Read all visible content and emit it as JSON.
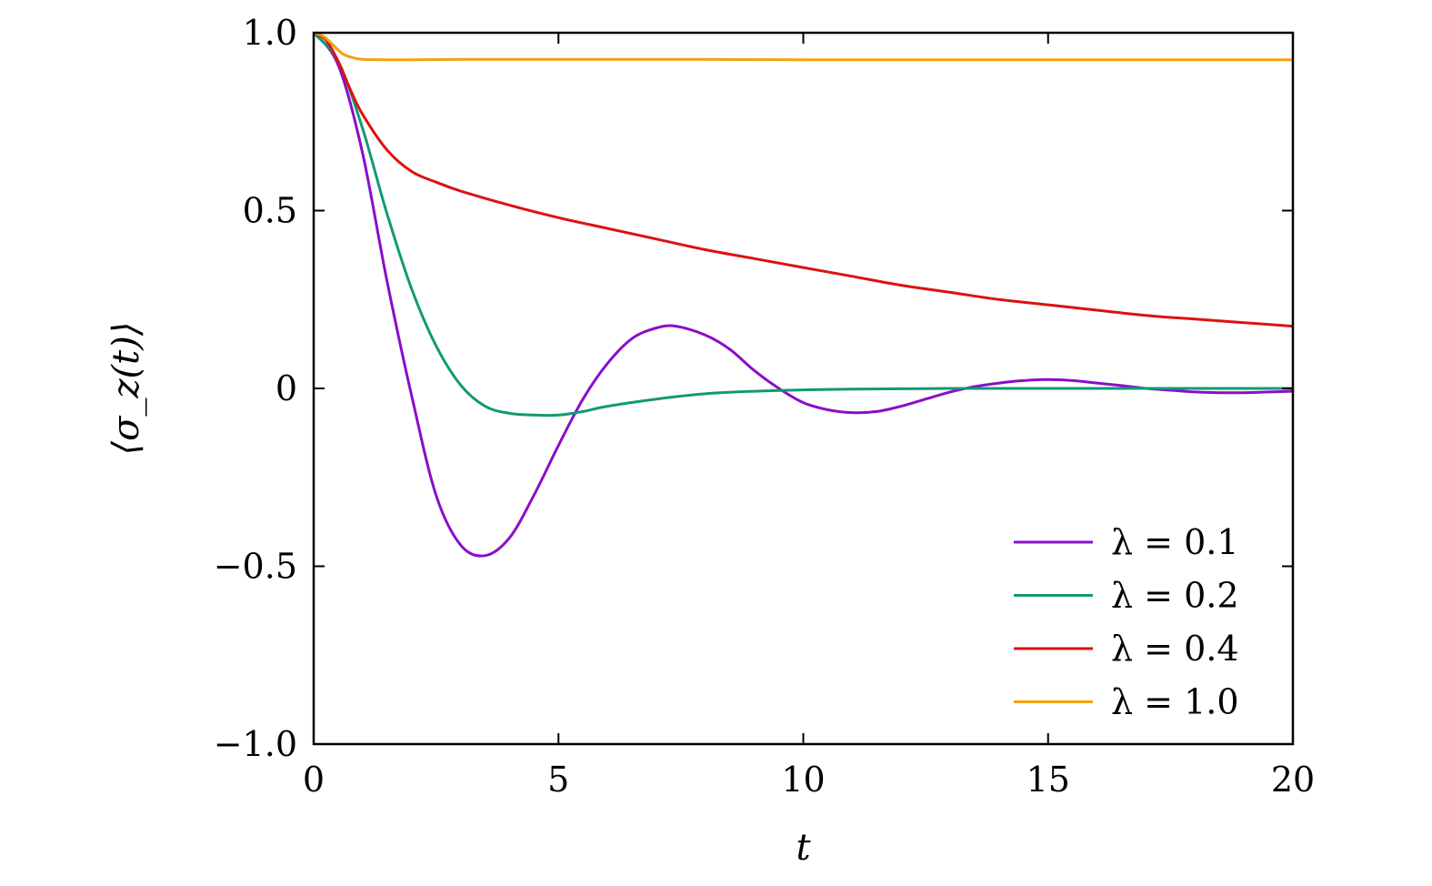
{
  "chart_data": {
    "type": "line",
    "xlabel": "t",
    "ylabel": "⟨σ_z(t)⟩",
    "xlim": [
      0,
      20
    ],
    "ylim": [
      -1.0,
      1.0
    ],
    "xticks": [
      0,
      5,
      10,
      15,
      20
    ],
    "xtick_labels": [
      "0",
      "5",
      "10",
      "15",
      "20"
    ],
    "yticks": [
      -1.0,
      -0.5,
      0,
      0.5,
      1.0
    ],
    "ytick_labels": [
      "−1.0",
      "−0.5",
      "0",
      "0.5",
      "1.0"
    ],
    "grid": false,
    "legend_position": "bottom-right",
    "series": [
      {
        "name": "λ = 0.1",
        "color": "#8a0ec9",
        "x": [
          0,
          0.5,
          1.0,
          1.5,
          2.0,
          2.5,
          3.0,
          3.5,
          4.0,
          4.5,
          5.0,
          5.5,
          6.0,
          6.5,
          7.0,
          7.4,
          8.0,
          8.5,
          9.0,
          9.5,
          10.0,
          10.5,
          11.0,
          11.5,
          12.0,
          12.5,
          13.0,
          13.5,
          14.0,
          14.5,
          15.0,
          15.5,
          16.0,
          16.5,
          17.0,
          17.5,
          18.0,
          18.5,
          19.0,
          19.5,
          20.0
        ],
        "y": [
          1.0,
          0.91,
          0.66,
          0.3,
          -0.02,
          -0.3,
          -0.44,
          -0.47,
          -0.42,
          -0.3,
          -0.16,
          -0.03,
          0.07,
          0.14,
          0.17,
          0.175,
          0.15,
          0.11,
          0.05,
          0.0,
          -0.04,
          -0.06,
          -0.068,
          -0.065,
          -0.05,
          -0.03,
          -0.01,
          0.005,
          0.015,
          0.022,
          0.025,
          0.022,
          0.015,
          0.008,
          0.0,
          -0.005,
          -0.01,
          -0.012,
          -0.012,
          -0.01,
          -0.008
        ]
      },
      {
        "name": "λ = 0.2",
        "color": "#119a74",
        "x": [
          0,
          0.5,
          1.0,
          1.5,
          2.0,
          2.5,
          3.0,
          3.5,
          4.0,
          4.5,
          5.0,
          5.5,
          6.0,
          7.0,
          8.0,
          9.0,
          10.0,
          11.0,
          12.0,
          13.0,
          14.0,
          15.0,
          16.0,
          17.0,
          18.0,
          19.0,
          20.0
        ],
        "y": [
          1.0,
          0.92,
          0.73,
          0.49,
          0.28,
          0.12,
          0.01,
          -0.05,
          -0.07,
          -0.075,
          -0.075,
          -0.065,
          -0.05,
          -0.03,
          -0.015,
          -0.008,
          -0.004,
          -0.002,
          -0.001,
          0.0,
          0.0,
          0.0,
          0.0,
          0.0,
          0.0,
          0.0,
          0.0
        ]
      },
      {
        "name": "λ = 0.4",
        "color": "#dd1111",
        "x": [
          0,
          0.25,
          0.5,
          0.75,
          1.0,
          1.5,
          2.0,
          2.5,
          3.0,
          4.0,
          5.0,
          6.0,
          7.0,
          8.0,
          9.0,
          10.0,
          11.0,
          12.0,
          13.0,
          14.0,
          15.0,
          16.0,
          17.0,
          18.0,
          19.0,
          20.0
        ],
        "y": [
          1.0,
          0.98,
          0.92,
          0.84,
          0.77,
          0.67,
          0.61,
          0.58,
          0.555,
          0.515,
          0.48,
          0.45,
          0.42,
          0.39,
          0.365,
          0.34,
          0.315,
          0.29,
          0.27,
          0.25,
          0.235,
          0.22,
          0.205,
          0.195,
          0.185,
          0.175
        ]
      },
      {
        "name": "λ = 1.0",
        "color": "#f2a20c",
        "x": [
          0,
          0.2,
          0.4,
          0.6,
          0.8,
          1.0,
          1.5,
          2.0,
          3.0,
          5.0,
          8.0,
          10.0,
          15.0,
          20.0
        ],
        "y": [
          1.0,
          0.99,
          0.965,
          0.94,
          0.93,
          0.925,
          0.924,
          0.924,
          0.925,
          0.925,
          0.925,
          0.924,
          0.924,
          0.924
        ]
      }
    ]
  }
}
